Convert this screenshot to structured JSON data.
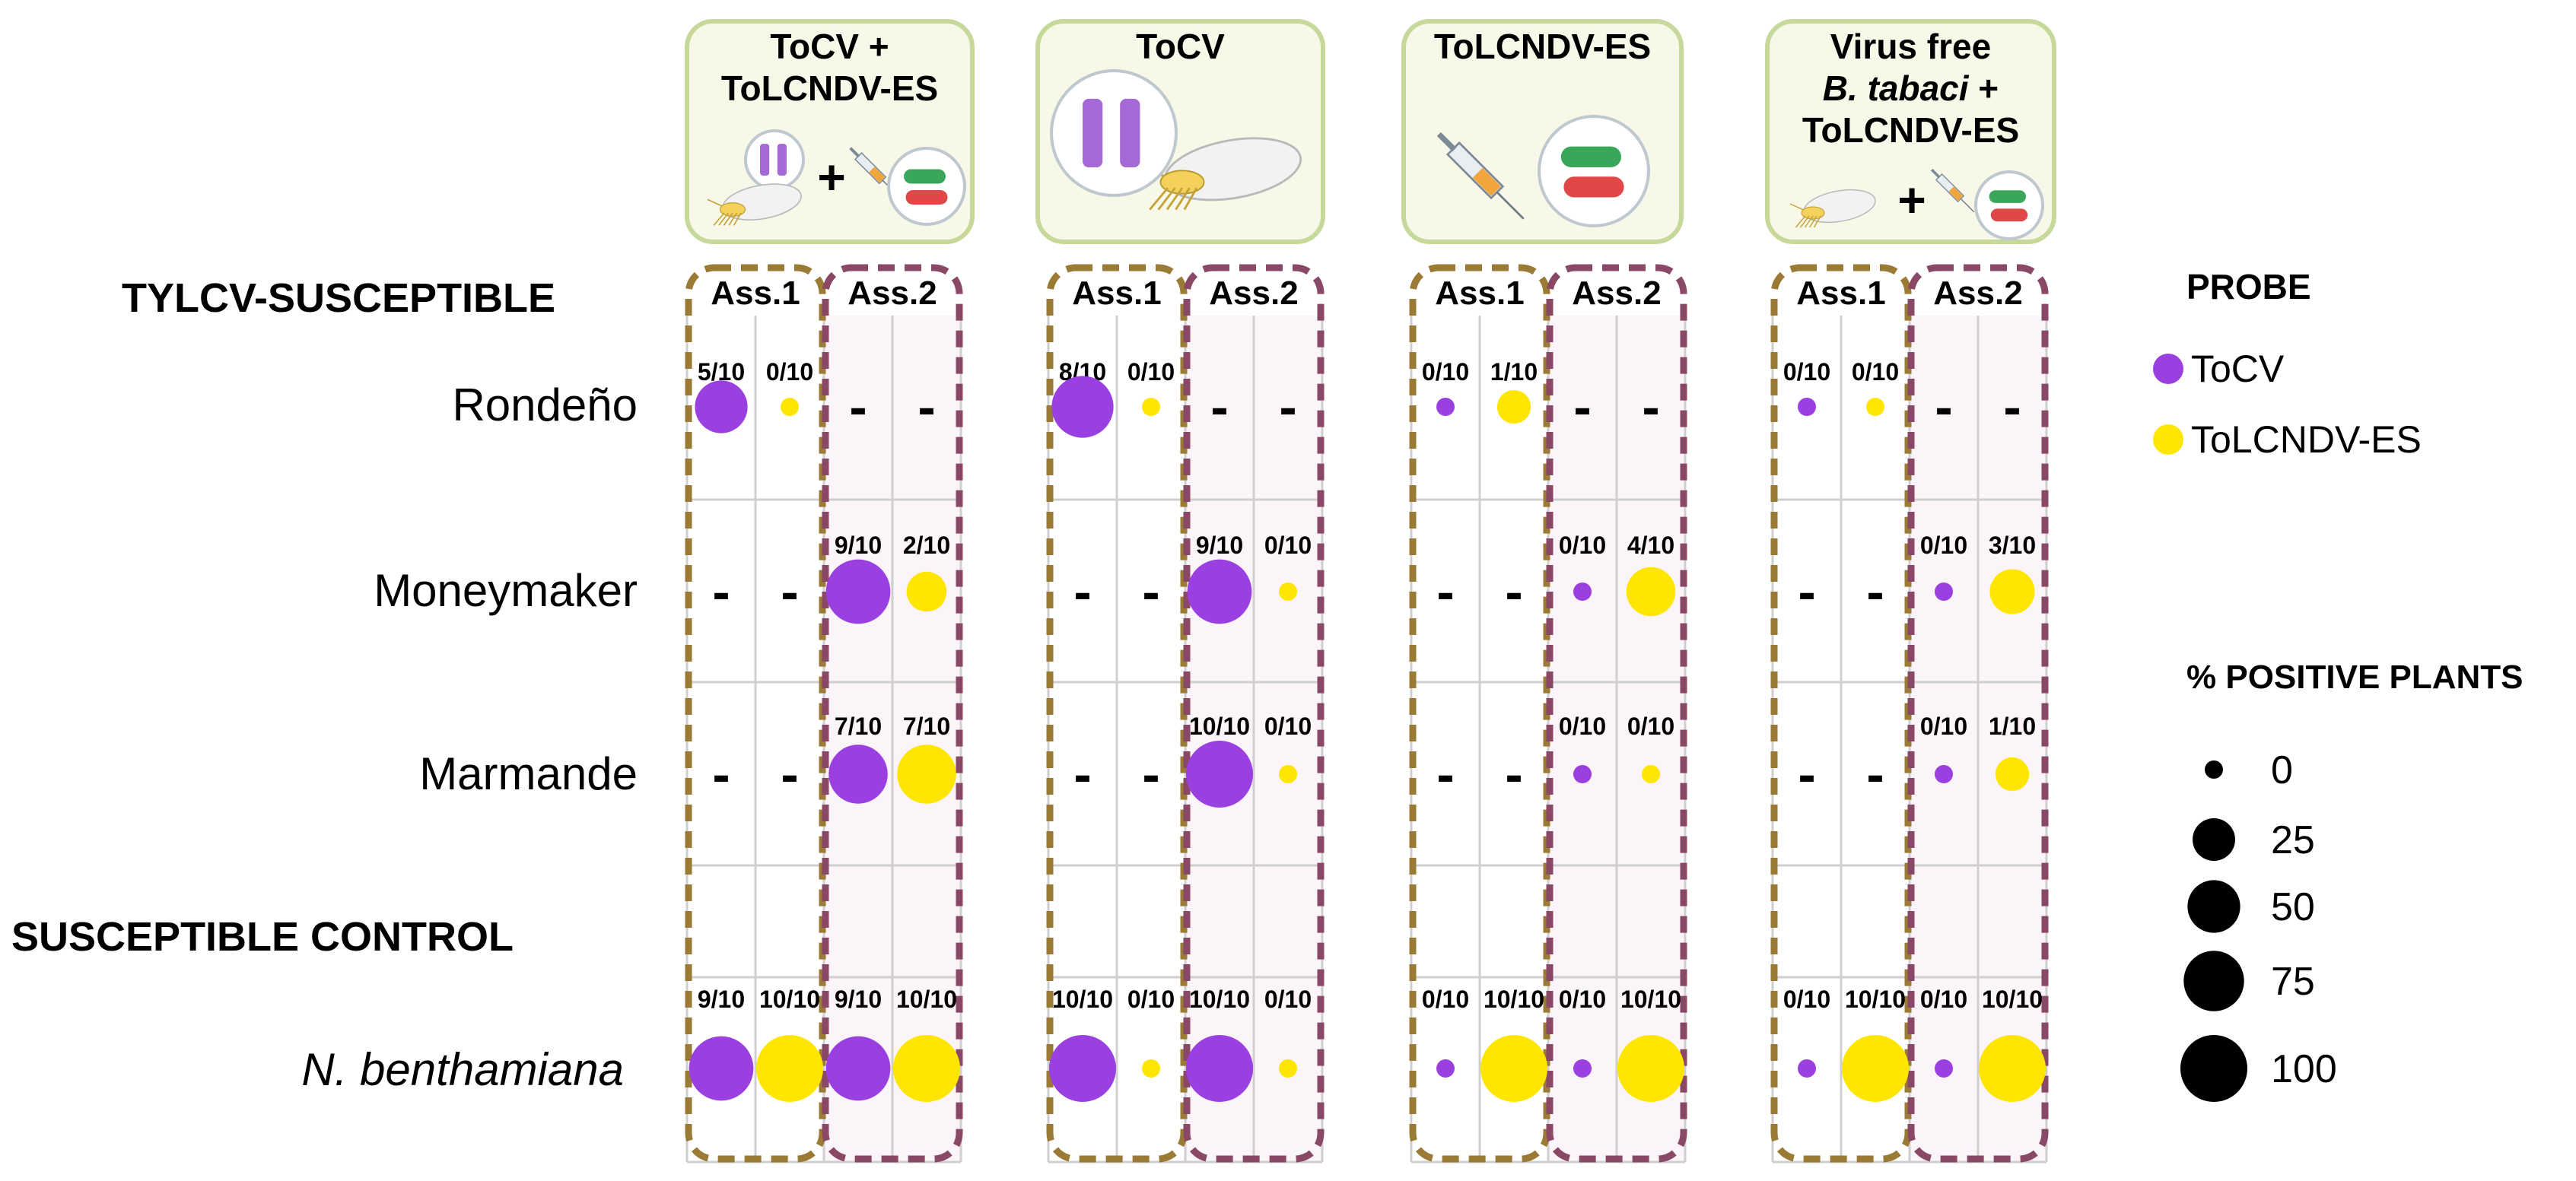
{
  "chart_data": {
    "type": "bubble-matrix",
    "treatments": [
      {
        "label_lines": [
          {
            "text": "ToCV +"
          },
          {
            "text": "ToLCNDV-ES"
          }
        ],
        "illustration": "whitefly-plus-syringe-icon"
      },
      {
        "label_lines": [
          {
            "text": "ToCV"
          }
        ],
        "illustration": "whitefly-with-closterovirus-icon"
      },
      {
        "label_lines": [
          {
            "text": "ToLCNDV-ES"
          }
        ],
        "illustration": "syringe-with-bacteria-icon"
      },
      {
        "label_lines": [
          {
            "text": "Virus free"
          },
          {
            "text": "B. tabaci",
            "italic": true,
            "suffix": " +"
          },
          {
            "text": "ToLCNDV-ES"
          }
        ],
        "illustration": "whitefly-plus-syringe-icon"
      }
    ],
    "assays": [
      "Ass.1",
      "Ass.2"
    ],
    "assay_colors": {
      "Ass.1": "#9b7a35",
      "Ass.2": "#8a4867"
    },
    "sections": [
      {
        "label": "TYLCV-SUSCEPTIBLE",
        "rows": [
          "Rondeño",
          "Moneymaker",
          "Marmande"
        ]
      },
      {
        "label": "SUSCEPTIBLE CONTROL",
        "rows": [
          "N. benthamiana"
        ],
        "italic": true
      }
    ],
    "probes": [
      {
        "name": "ToCV",
        "color": "#9a3fe0"
      },
      {
        "name": "ToLCNDV-ES",
        "color": "#ffe600"
      }
    ],
    "not_tested_symbol": "-",
    "cells": [
      [
        [
          [
            "5/10",
            "0/10"
          ],
          [
            "-",
            "-"
          ]
        ],
        [
          [
            "8/10",
            "0/10"
          ],
          [
            "-",
            "-"
          ]
        ],
        [
          [
            "0/10",
            "1/10"
          ],
          [
            "-",
            "-"
          ]
        ],
        [
          [
            "0/10",
            "0/10"
          ],
          [
            "-",
            "-"
          ]
        ]
      ],
      [
        [
          [
            "-",
            "-"
          ],
          [
            "9/10",
            "2/10"
          ]
        ],
        [
          [
            "-",
            "-"
          ],
          [
            "9/10",
            "0/10"
          ]
        ],
        [
          [
            "-",
            "-"
          ],
          [
            "0/10",
            "4/10"
          ]
        ],
        [
          [
            "-",
            "-"
          ],
          [
            "0/10",
            "3/10"
          ]
        ]
      ],
      [
        [
          [
            "-",
            "-"
          ],
          [
            "7/10",
            "7/10"
          ]
        ],
        [
          [
            "-",
            "-"
          ],
          [
            "10/10",
            "0/10"
          ]
        ],
        [
          [
            "-",
            "-"
          ],
          [
            "0/10",
            "0/10"
          ]
        ],
        [
          [
            "-",
            "-"
          ],
          [
            "0/10",
            "1/10"
          ]
        ]
      ],
      [
        [
          [
            "9/10",
            "10/10"
          ],
          [
            "9/10",
            "10/10"
          ]
        ],
        [
          [
            "10/10",
            "0/10"
          ],
          [
            "10/10",
            "0/10"
          ]
        ],
        [
          [
            "0/10",
            "10/10"
          ],
          [
            "0/10",
            "10/10"
          ]
        ],
        [
          [
            "0/10",
            "10/10"
          ],
          [
            "0/10",
            "10/10"
          ]
        ]
      ]
    ],
    "legend": {
      "probe_title": "PROBE",
      "size_title": "% POSITIVE PLANTS",
      "size_values": [
        0,
        25,
        50,
        75,
        100
      ]
    }
  }
}
